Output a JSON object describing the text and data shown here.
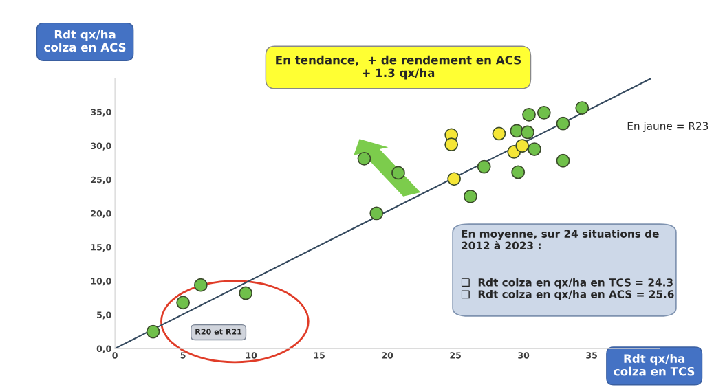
{
  "chart_data": {
    "type": "scatter",
    "xlabel": "Rdt qx/ha\ncolza en TCS",
    "ylabel": "Rdt qx/ha\ncolza en ACS",
    "xlim": [
      0,
      40
    ],
    "ylim": [
      0,
      40
    ],
    "xticks": [
      {
        "value": 0,
        "label": "0"
      },
      {
        "value": 5,
        "label": "5"
      },
      {
        "value": 10,
        "label": "10"
      },
      {
        "value": 15,
        "label": "15"
      },
      {
        "value": 20,
        "label": "20"
      },
      {
        "value": 25,
        "label": "25"
      },
      {
        "value": 30,
        "label": "30"
      },
      {
        "value": 35,
        "label": "35"
      }
    ],
    "yticks": [
      {
        "value": 0,
        "label": "0,0"
      },
      {
        "value": 5,
        "label": "5,0"
      },
      {
        "value": 10,
        "label": "10,0"
      },
      {
        "value": 15,
        "label": "15,0"
      },
      {
        "value": 20,
        "label": "20,0"
      },
      {
        "value": 25,
        "label": "25,0"
      },
      {
        "value": 30,
        "label": "30,0"
      },
      {
        "value": 35,
        "label": "35,0"
      }
    ],
    "grid": false,
    "legend": false,
    "marker": "circle",
    "series": [
      {
        "type": "line",
        "marker": "none",
        "color": "#34495e",
        "x": [
          0,
          39.3
        ],
        "values": [
          0,
          39.9
        ]
      },
      {
        "color": "#70c04a",
        "x": [
          2.8,
          5.0,
          6.3,
          9.6,
          18.3,
          20.8,
          19.2,
          27.1,
          26.1,
          29.6,
          29.5,
          30.3,
          30.4,
          31.5,
          30.8,
          32.9,
          32.9,
          34.3
        ],
        "values": [
          2.5,
          6.8,
          9.4,
          8.2,
          28.1,
          26.0,
          20.0,
          26.9,
          22.5,
          26.1,
          32.2,
          32.0,
          34.6,
          34.9,
          29.5,
          33.3,
          27.8,
          35.6
        ]
      },
      {
        "color": "#f5e637",
        "x": [
          24.7,
          24.7,
          24.9,
          28.2,
          29.3,
          29.9
        ],
        "values": [
          31.6,
          30.2,
          25.1,
          31.8,
          29.1,
          30.0
        ]
      }
    ],
    "annotations": [
      "En tendance,  + de rendement en ACS\n+ 1.3 qx/ha",
      "En jaune = R23",
      "R20 et R21",
      "En moyenne, sur 24 situations de\n2012 à 2023 :",
      "❑  Rdt colza en qx/ha en TCS = 24.3\n❑  Rdt colza en qx/ha en ACS = 25.6"
    ]
  }
}
